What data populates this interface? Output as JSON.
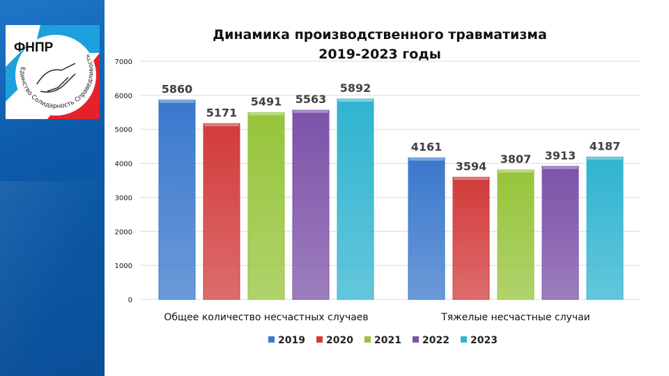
{
  "logo": {
    "text": "ФНПР",
    "motto": "Единство Солидарность Справедливость"
  },
  "colors": {
    "2019": "#3a78cc",
    "2020": "#d23b3b",
    "2021": "#96c43a",
    "2022": "#7c52a8",
    "2023": "#2fb4d0",
    "sidebar": "#0b5aa8"
  },
  "chart_data": {
    "type": "bar",
    "title": [
      "Динамика производственного травматизма",
      "2019-2023 годы"
    ],
    "categories": [
      "Общее количество несчастных случаев",
      "Тяжелые несчастные случаи"
    ],
    "series": [
      {
        "name": "2019",
        "values": [
          5860,
          4161
        ]
      },
      {
        "name": "2020",
        "values": [
          5171,
          3594
        ]
      },
      {
        "name": "2021",
        "values": [
          5491,
          3807
        ]
      },
      {
        "name": "2022",
        "values": [
          5563,
          3913
        ]
      },
      {
        "name": "2023",
        "values": [
          5892,
          4187
        ]
      }
    ],
    "ylim": [
      0,
      7000
    ],
    "yticks": [
      "0",
      "1000",
      "2000",
      "3000",
      "4000",
      "5000",
      "6000",
      "7000"
    ],
    "grid": true,
    "legend": "bottom"
  }
}
